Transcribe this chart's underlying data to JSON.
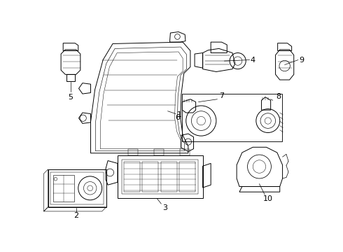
{
  "bg_color": "#ffffff",
  "line_color": "#000000",
  "lw": 0.7,
  "fig_w": 4.9,
  "fig_h": 3.6,
  "dpi": 100,
  "xlim": [
    0,
    490
  ],
  "ylim": [
    0,
    360
  ]
}
